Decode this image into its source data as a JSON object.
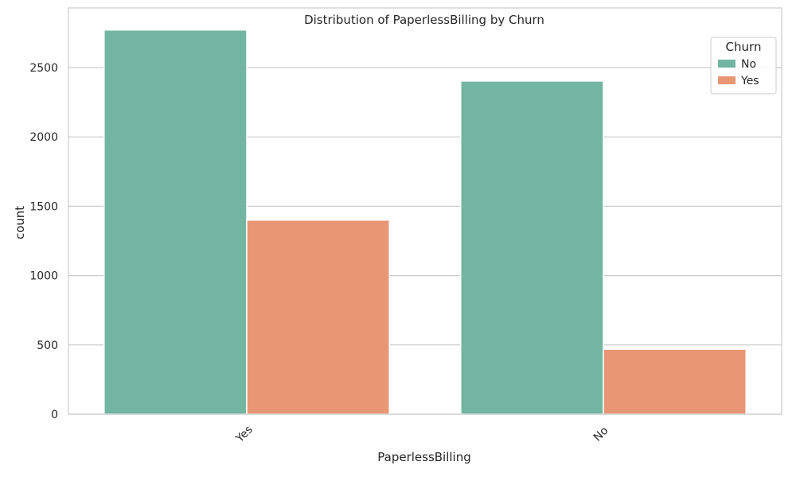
{
  "chart_data": {
    "type": "bar",
    "title": "Distribution of PaperlessBilling by Churn",
    "xlabel": "PaperlessBilling",
    "ylabel": "count",
    "categories": [
      "Yes",
      "No"
    ],
    "series": [
      {
        "name": "No",
        "values": [
          2771,
          2403
        ],
        "color": "#72b6a1"
      },
      {
        "name": "Yes",
        "values": [
          1400,
          469
        ],
        "color": "#e99675"
      }
    ],
    "ylim": [
      0,
      2930
    ],
    "yticks": [
      0,
      500,
      1000,
      1500,
      2000,
      2500
    ],
    "grid": true,
    "legend": {
      "title": "Churn",
      "placement": "top-right"
    }
  }
}
